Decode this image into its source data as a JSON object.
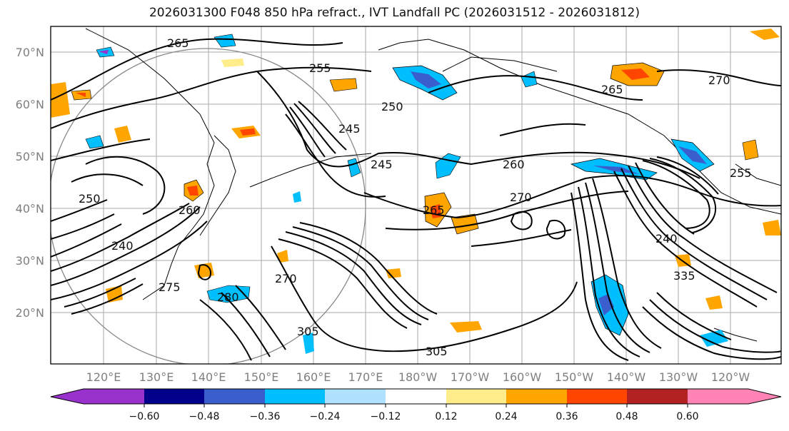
{
  "title": "2026031300 F048 850 hPa refract., IVT Landfall PC (2026031512 - 2026031812)",
  "lat_labels": [
    "70°N",
    "60°N",
    "50°N",
    "40°N",
    "30°N",
    "20°N"
  ],
  "lon_labels": [
    "120°E",
    "130°E",
    "140°E",
    "150°E",
    "160°E",
    "170°E",
    "180°W",
    "170°W",
    "160°W",
    "150°W",
    "140°W",
    "130°W",
    "120°W"
  ],
  "contour_labels": [
    "265",
    "255",
    "250",
    "245",
    "245",
    "260",
    "265",
    "270",
    "265",
    "270",
    "255",
    "250",
    "260",
    "240",
    "275",
    "280",
    "270",
    "305",
    "305",
    "335",
    "240"
  ],
  "colorbar": {
    "colors": [
      "#9932cc",
      "#00008b",
      "#3a5fcd",
      "#00bfff",
      "#b0e2ff",
      "#ffffff",
      "#ffec8b",
      "#ffa500",
      "#ff4500",
      "#b22222",
      "#ff83b4"
    ],
    "ticks": [
      "−0.60",
      "−0.48",
      "−0.36",
      "−0.24",
      "−0.12",
      "0.12",
      "0.24",
      "0.36",
      "0.48",
      "0.60"
    ]
  }
}
